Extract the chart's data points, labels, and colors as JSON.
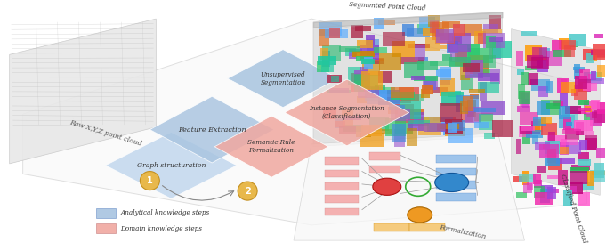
{
  "fig_width": 6.81,
  "fig_height": 2.82,
  "dpi": 100,
  "bg_color": "#ffffff",
  "blue": "#a8c4e0",
  "light_blue": "#bdd4ed",
  "pink": "#f0a8a0",
  "light_pink": "#f5b8b0",
  "gold": "#e8b84b",
  "platform_fill": "#f5f5f5",
  "platform_edge": "#cccccc",
  "raw_fill": "#e0e0e0",
  "raw_edge": "#c0c0c0",
  "text_dark": "#333333",
  "text_mid": "#555555",
  "labels": {
    "raw_point_cloud": "Raw X,Y,Z point cloud",
    "feature_extraction": "Feature Extraction",
    "graph_structuration": "Graph structuration",
    "unsupervised_seg": "Unsupervised\nSegmentation",
    "semantic_rule": "Semantic Rule\nFormalization",
    "instance_seg": "Instance Segmentation\n(Classification)",
    "formalization": "Formalization",
    "segmented_pc": "Segmented Point Cloud",
    "classified_pc": "Classified Point Cloud",
    "legend_analytical": "Analytical knowledge steps",
    "legend_domain": "Domain knowledge steps",
    "num1": "1",
    "num2": "2"
  }
}
